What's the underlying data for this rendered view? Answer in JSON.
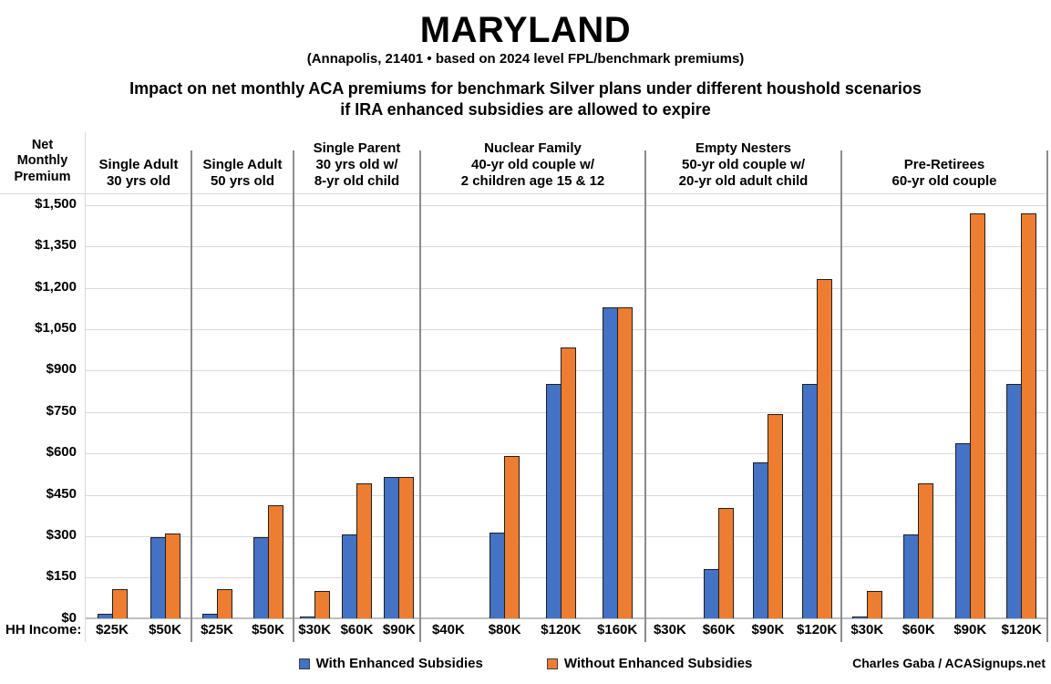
{
  "header": {
    "title": "MARYLAND",
    "subtitle": "(Annapolis, 21401 • based on 2024 level FPL/benchmark premiums)",
    "heading_line1": "Impact on net monthly ACA premiums for benchmark Silver plans under different houshold scenarios",
    "heading_line2": "if IRA enhanced subsidies are allowed to expire"
  },
  "axis": {
    "y_title_lines": [
      "Net",
      "Monthly",
      "Premium"
    ],
    "yticks": [
      "$1,500",
      "$1,350",
      "$1,200",
      "$1,050",
      "$900",
      "$750",
      "$600",
      "$450",
      "$300",
      "$150",
      "$0"
    ],
    "hh_income_label": "HH Income:"
  },
  "legend": {
    "with_label": "With Enhanced Subsidies",
    "without_label": "Without Enhanced Subsidies"
  },
  "credit": "Charles Gaba / ACASignups.net",
  "chart_data": {
    "type": "bar",
    "title": "MARYLAND — Impact on net monthly ACA premiums for benchmark Silver plans under different houshold scenarios if IRA enhanced subsidies are allowed to expire",
    "ylabel": "Net Monthly Premium",
    "xlabel": "HH Income",
    "ylim": [
      0,
      1500
    ],
    "ytick_step": 150,
    "grid": true,
    "legend_position": "bottom",
    "series_names": [
      "With Enhanced Subsidies",
      "Without Enhanced Subsidies"
    ],
    "colors": {
      "with_enhanced": "#4472C4",
      "without_enhanced": "#ED7D31"
    },
    "groups": [
      {
        "header_lines": [
          "Single Adult",
          "30 yrs old"
        ],
        "incomes": [
          "$25K",
          "$50K"
        ],
        "with_enhanced": [
          18,
          295
        ],
        "without_enhanced": [
          105,
          308
        ]
      },
      {
        "header_lines": [
          "Single Adult",
          "50 yrs old"
        ],
        "incomes": [
          "$25K",
          "$50K"
        ],
        "with_enhanced": [
          18,
          295
        ],
        "without_enhanced": [
          105,
          410
        ]
      },
      {
        "header_lines": [
          "Single Parent",
          "30 yrs old w/",
          "8-yr old child"
        ],
        "incomes": [
          "$30K",
          "$60K",
          "$90K"
        ],
        "with_enhanced": [
          3,
          303,
          512
        ],
        "without_enhanced": [
          100,
          488,
          512
        ]
      },
      {
        "header_lines": [
          "Nuclear Family",
          "40-yr old couple w/",
          "2 children age 15 & 12"
        ],
        "incomes": [
          "$40K",
          "$80K",
          "$120K",
          "$160K"
        ],
        "with_enhanced": [
          0,
          310,
          848,
          1127
        ],
        "without_enhanced": [
          0,
          588,
          980,
          1127
        ]
      },
      {
        "header_lines": [
          "Empty Nesters",
          "50-yr old couple w/",
          "20-yr old adult child"
        ],
        "incomes": [
          "$30K",
          "$60K",
          "$90K",
          "$120K"
        ],
        "with_enhanced": [
          0,
          180,
          565,
          848
        ],
        "without_enhanced": [
          0,
          400,
          740,
          1230
        ]
      },
      {
        "header_lines": [
          "Pre-Retirees",
          "60-yr old couple"
        ],
        "incomes": [
          "$30K",
          "$60K",
          "$90K",
          "$120K"
        ],
        "with_enhanced": [
          3,
          303,
          635,
          848
        ],
        "without_enhanced": [
          100,
          490,
          1468,
          1468
        ]
      }
    ]
  }
}
